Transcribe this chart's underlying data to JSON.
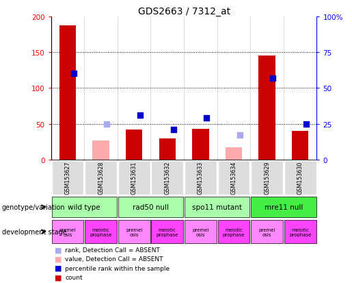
{
  "title": "GDS2663 / 7312_at",
  "samples": [
    "GSM153627",
    "GSM153628",
    "GSM153631",
    "GSM153632",
    "GSM153633",
    "GSM153634",
    "GSM153629",
    "GSM153630"
  ],
  "count_values": [
    187,
    null,
    42,
    30,
    43,
    null,
    145,
    40
  ],
  "count_absent": [
    null,
    27,
    null,
    null,
    null,
    17,
    null,
    null
  ],
  "rank_values": [
    60,
    null,
    31,
    21,
    29,
    null,
    57,
    25
  ],
  "rank_absent": [
    null,
    25,
    null,
    null,
    null,
    17,
    null,
    null
  ],
  "ylim_left": [
    0,
    200
  ],
  "ylim_right": [
    0,
    100
  ],
  "yticks_left": [
    0,
    50,
    100,
    150,
    200
  ],
  "yticks_right": [
    0,
    25,
    50,
    75,
    100
  ],
  "yticklabels_left": [
    "0",
    "50",
    "100",
    "150",
    "200"
  ],
  "yticklabels_right": [
    "0",
    "25",
    "50",
    "75",
    "100%"
  ],
  "bar_color_present": "#cc0000",
  "bar_color_absent": "#ffaaaa",
  "dot_color_present": "#0000cc",
  "dot_color_absent": "#aaaaee",
  "genotype_groups": [
    {
      "label": "wild type",
      "start": 0,
      "end": 2,
      "color": "#aaffaa"
    },
    {
      "label": "rad50 null",
      "start": 2,
      "end": 4,
      "color": "#aaffaa"
    },
    {
      "label": "spo11 mutant",
      "start": 4,
      "end": 6,
      "color": "#aaffaa"
    },
    {
      "label": "mre11 null",
      "start": 6,
      "end": 8,
      "color": "#44ee44"
    }
  ],
  "dev_stage_labels": [
    "premei\nosis",
    "meiotic\nprophase",
    "premei\nosis",
    "meiotic\nprophase",
    "premei\nosis",
    "meiotic\nprophase",
    "premei\nosis",
    "meiotic\nprophase"
  ],
  "dev_stage_colors": [
    "#ff88ff",
    "#ff44ff",
    "#ff88ff",
    "#ff44ff",
    "#ff88ff",
    "#ff44ff",
    "#ff88ff",
    "#ff44ff"
  ],
  "background_color": "#ffffff",
  "legend_items": [
    {
      "color": "#cc0000",
      "label": "count"
    },
    {
      "color": "#0000cc",
      "label": "percentile rank within the sample"
    },
    {
      "color": "#ffaaaa",
      "label": "value, Detection Call = ABSENT"
    },
    {
      "color": "#aaaaee",
      "label": "rank, Detection Call = ABSENT"
    }
  ]
}
